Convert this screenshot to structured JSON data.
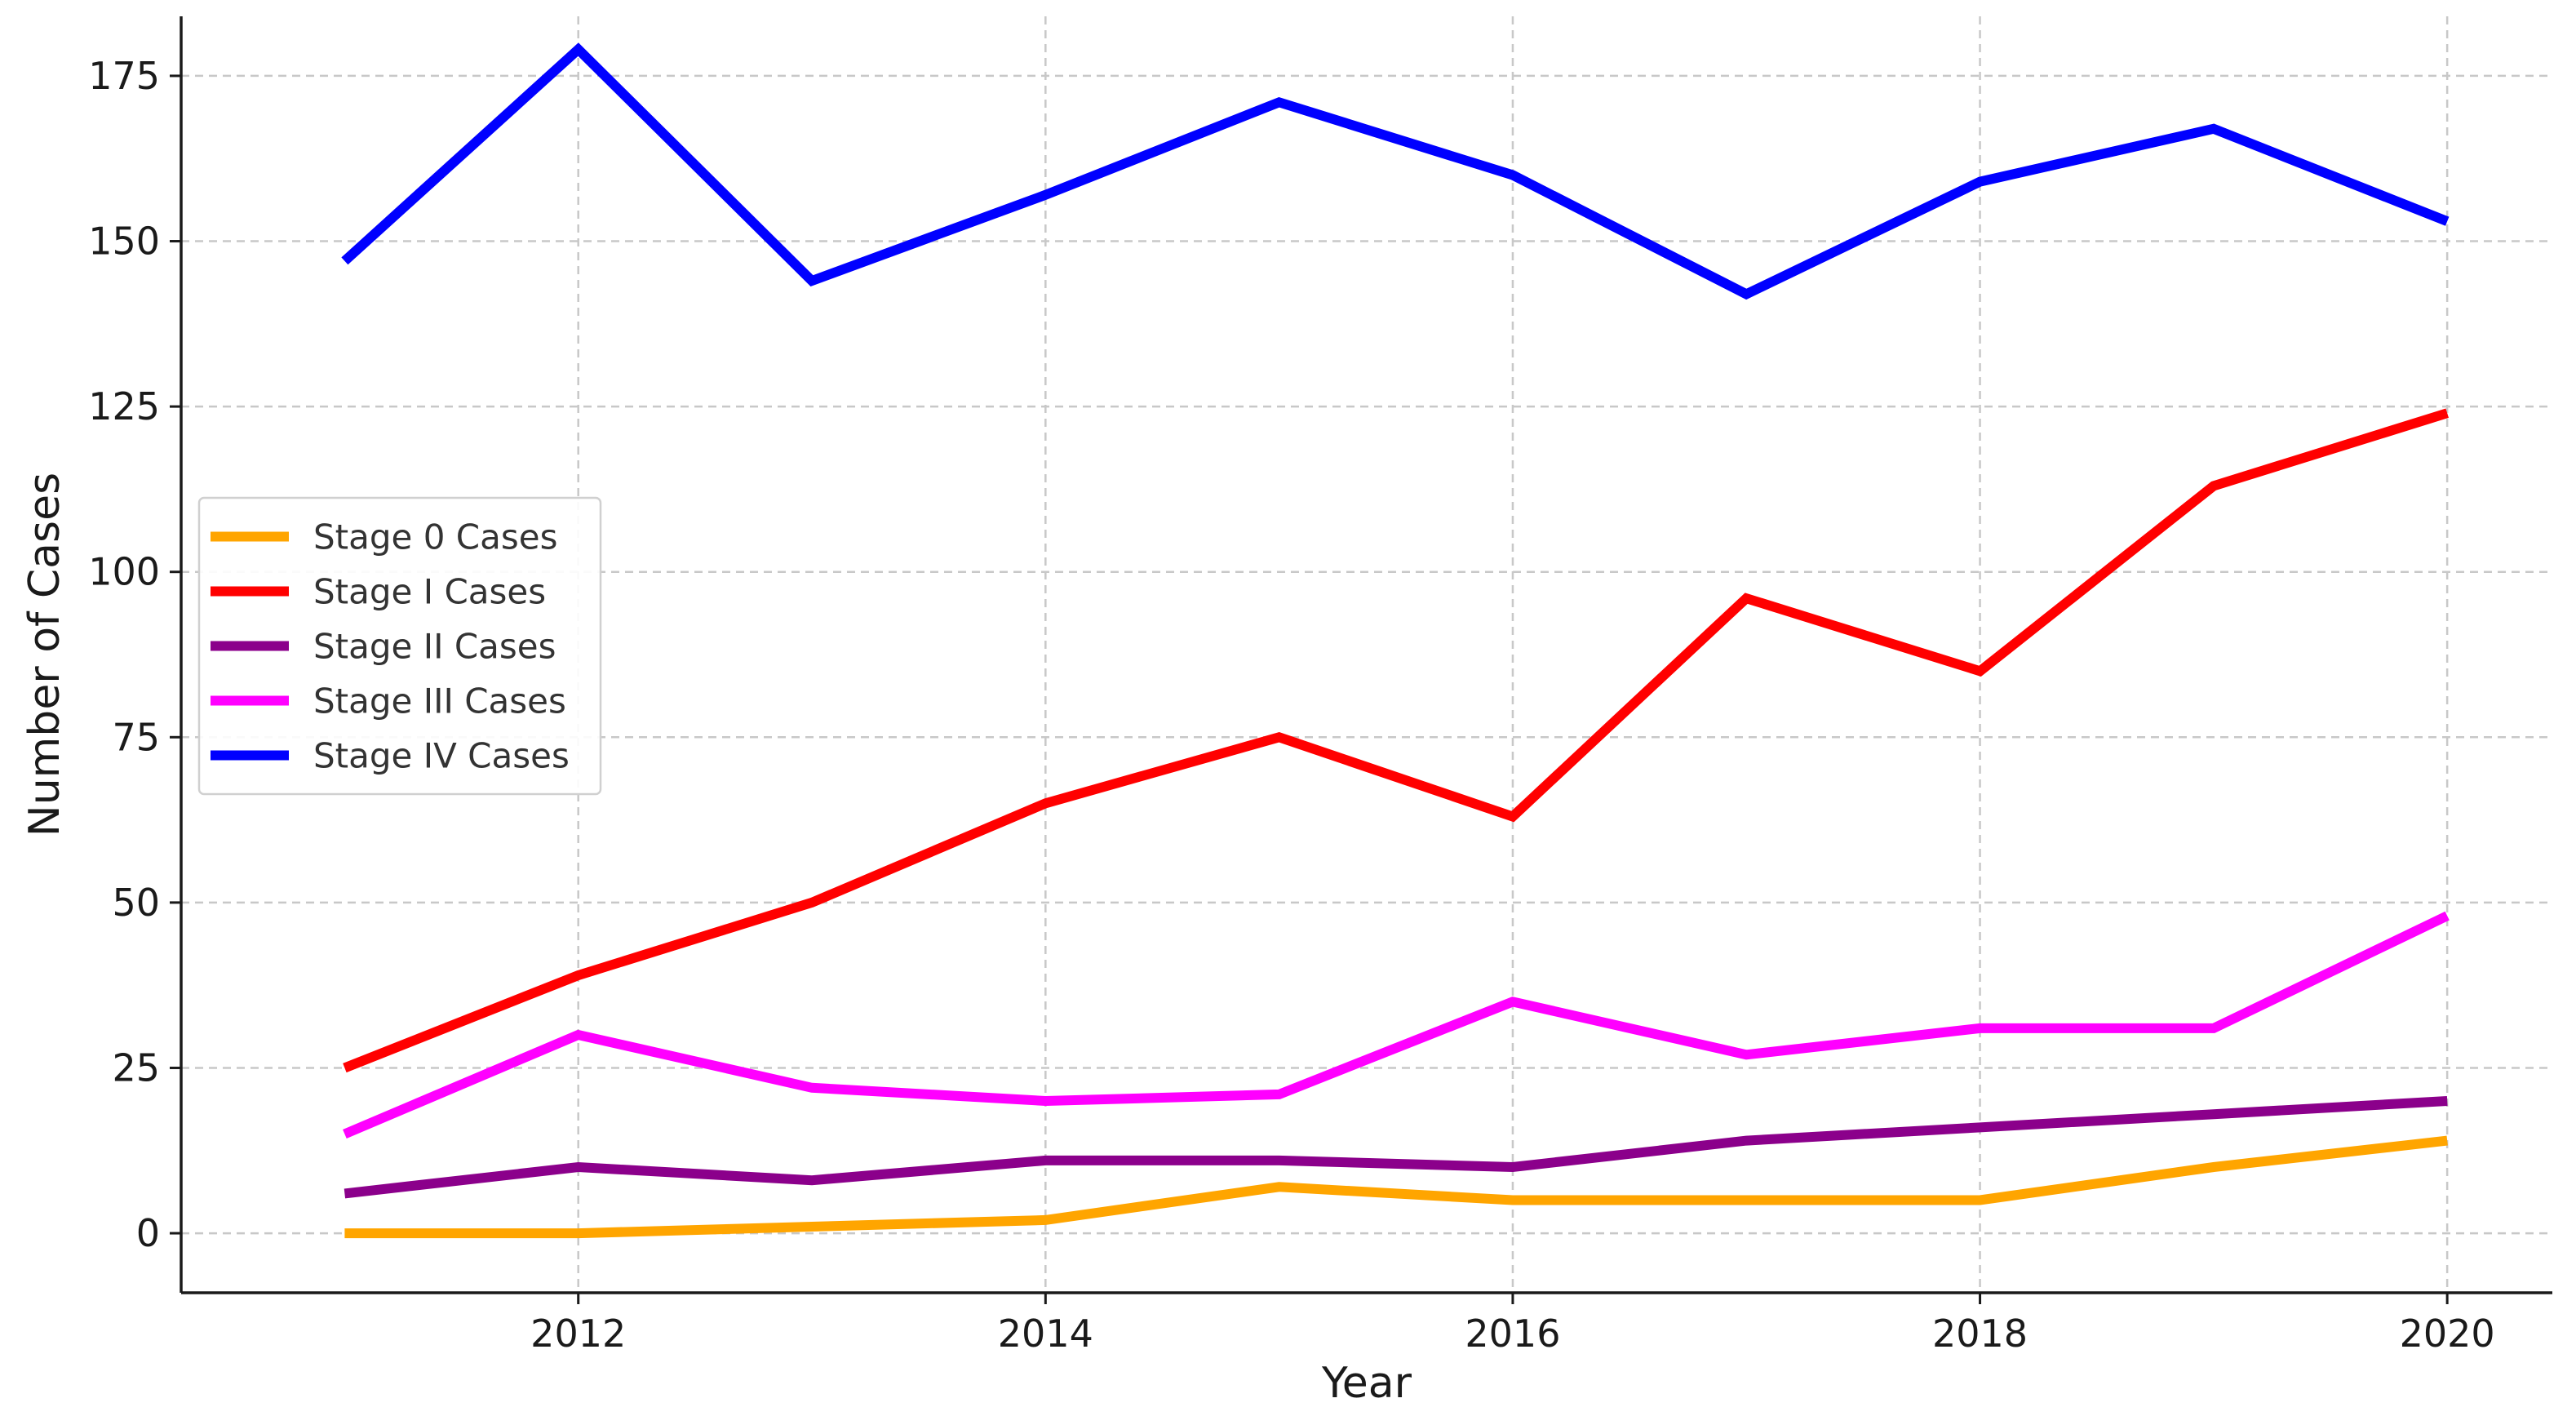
{
  "chart_data": {
    "type": "line",
    "title": "",
    "xlabel": "Year",
    "ylabel": "Number of Cases",
    "x": [
      2011,
      2012,
      2013,
      2014,
      2015,
      2016,
      2017,
      2018,
      2019,
      2020
    ],
    "xlim": [
      2010.3,
      2020.45
    ],
    "ylim": [
      -9,
      184
    ],
    "xticks": [
      2012,
      2014,
      2016,
      2018,
      2020
    ],
    "yticks": [
      0,
      25,
      50,
      75,
      100,
      125,
      150,
      175
    ],
    "grid": true,
    "legend_position": "center-left",
    "series": [
      {
        "name": "Stage 0 Cases",
        "color": "#FFA500",
        "values": [
          0,
          0,
          1,
          2,
          7,
          5,
          5,
          5,
          10,
          14
        ]
      },
      {
        "name": "Stage I Cases",
        "color": "#FF0000",
        "values": [
          25,
          39,
          50,
          65,
          75,
          63,
          96,
          85,
          113,
          124
        ]
      },
      {
        "name": "Stage II Cases",
        "color": "#8B008B",
        "values": [
          6,
          10,
          8,
          11,
          11,
          10,
          14,
          16,
          18,
          20
        ]
      },
      {
        "name": "Stage III Cases",
        "color": "#FF00FF",
        "values": [
          15,
          30,
          22,
          20,
          21,
          35,
          27,
          31,
          31,
          48
        ]
      },
      {
        "name": "Stage IV Cases",
        "color": "#0000FF",
        "values": [
          147,
          179,
          144,
          157,
          171,
          160,
          142,
          159,
          167,
          153
        ]
      }
    ]
  }
}
